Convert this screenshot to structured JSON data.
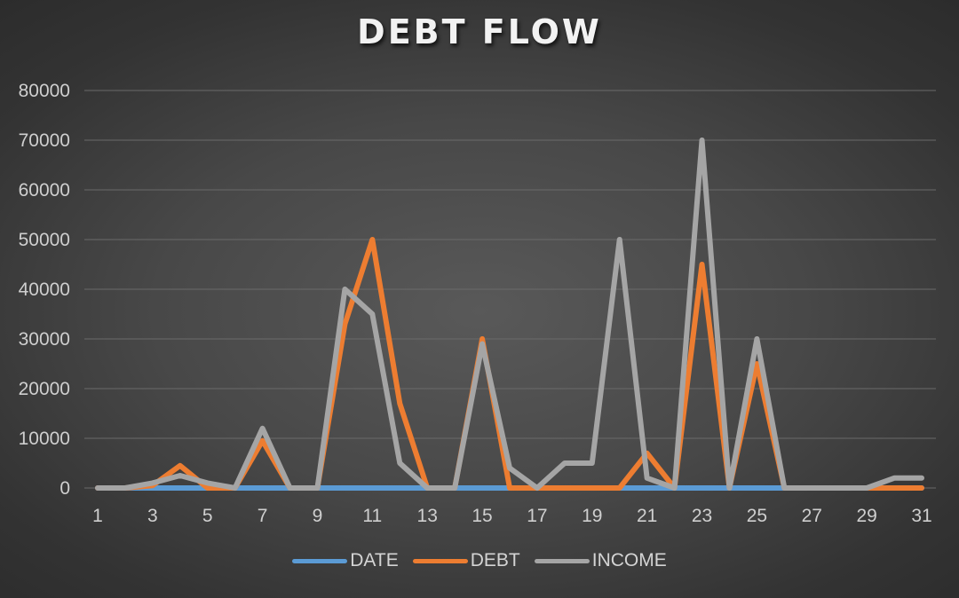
{
  "chart_data": {
    "type": "line",
    "title": "DEBT FLOW",
    "xlabel": "",
    "ylabel": "",
    "x": [
      1,
      2,
      3,
      4,
      5,
      6,
      7,
      8,
      9,
      10,
      11,
      12,
      13,
      14,
      15,
      16,
      17,
      18,
      19,
      20,
      21,
      22,
      23,
      24,
      25,
      26,
      27,
      28,
      29,
      30,
      31
    ],
    "x_tick_labels": [
      "1",
      "3",
      "5",
      "7",
      "9",
      "11",
      "13",
      "15",
      "17",
      "19",
      "21",
      "23",
      "25",
      "27",
      "29",
      "31"
    ],
    "y_tick_labels": [
      "0",
      "10000",
      "20000",
      "30000",
      "40000",
      "50000",
      "60000",
      "70000",
      "80000"
    ],
    "ylim": [
      0,
      80000
    ],
    "grid": true,
    "legend_position": "bottom",
    "series": [
      {
        "name": "DATE",
        "color": "#5b9bd5",
        "values": [
          0,
          0,
          0,
          0,
          0,
          0,
          0,
          0,
          0,
          0,
          0,
          0,
          0,
          0,
          0,
          0,
          0,
          0,
          0,
          0,
          0,
          0,
          0,
          0,
          0,
          0,
          0,
          0,
          0,
          0,
          0
        ]
      },
      {
        "name": "DEBT",
        "color": "#ed7d31",
        "values": [
          0,
          0,
          500,
          4500,
          0,
          0,
          9500,
          0,
          0,
          33000,
          50000,
          17000,
          0,
          0,
          30000,
          0,
          0,
          0,
          0,
          0,
          7000,
          0,
          45000,
          0,
          25000,
          0,
          0,
          0,
          0,
          0,
          0
        ]
      },
      {
        "name": "INCOME",
        "color": "#a5a5a5",
        "values": [
          0,
          0,
          1000,
          2500,
          1000,
          0,
          12000,
          0,
          0,
          40000,
          35000,
          5000,
          0,
          0,
          29000,
          4000,
          0,
          5000,
          5000,
          50000,
          2000,
          0,
          70000,
          0,
          30000,
          0,
          0,
          0,
          0,
          2000,
          2000
        ]
      }
    ]
  }
}
